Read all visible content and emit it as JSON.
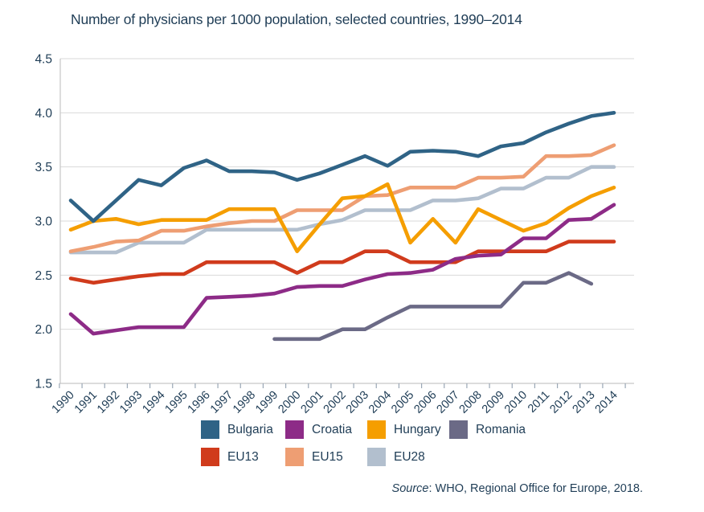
{
  "title": "Number of physicians per 1000 population, selected countries, 1990–2014",
  "source": {
    "prefix": "Source",
    "rest": ": WHO, Regional Office for Europe, 2018."
  },
  "colors": {
    "text": "#1f3d56",
    "gridline": "#d9d9d9",
    "axis": "#c6c6c6",
    "tick": "#9aa7b5",
    "background": "#ffffff"
  },
  "chart_data": {
    "type": "line",
    "title": "Number of physicians per 1000 population, selected countries, 1990–2014",
    "xlabel": "",
    "ylabel": "",
    "x": [
      1990,
      1991,
      1992,
      1993,
      1994,
      1995,
      1996,
      1997,
      1998,
      1999,
      2000,
      2001,
      2002,
      2003,
      2004,
      2005,
      2006,
      2007,
      2008,
      2009,
      2010,
      2011,
      2012,
      2013,
      2014
    ],
    "ylim": [
      1.5,
      4.5
    ],
    "ytick_step": 0.5,
    "grid": true,
    "legend_position": "bottom",
    "series": [
      {
        "name": "Bulgaria",
        "color": "#2f6386",
        "values": [
          3.19,
          3.0,
          3.19,
          3.38,
          3.33,
          3.49,
          3.56,
          3.46,
          3.46,
          3.45,
          3.38,
          3.44,
          3.52,
          3.6,
          3.51,
          3.64,
          3.65,
          3.64,
          3.6,
          3.69,
          3.72,
          3.82,
          3.9,
          3.97,
          4.0
        ]
      },
      {
        "name": "Croatia",
        "color": "#8d2b87",
        "values": [
          2.14,
          1.96,
          1.99,
          2.02,
          2.02,
          2.02,
          2.29,
          2.3,
          2.31,
          2.33,
          2.39,
          2.4,
          2.4,
          2.46,
          2.51,
          2.52,
          2.55,
          2.65,
          2.68,
          2.69,
          2.84,
          2.84,
          3.01,
          3.02,
          3.15
        ]
      },
      {
        "name": "Hungary",
        "color": "#f59e00",
        "values": [
          2.92,
          3.0,
          3.02,
          2.97,
          3.01,
          3.01,
          3.01,
          3.11,
          3.11,
          3.11,
          2.72,
          2.97,
          3.21,
          3.23,
          3.34,
          2.8,
          3.02,
          2.8,
          3.11,
          3.01,
          2.91,
          2.98,
          3.12,
          3.23,
          3.31
        ]
      },
      {
        "name": "Romania",
        "color": "#6b6a86",
        "values": [
          null,
          null,
          null,
          null,
          null,
          null,
          null,
          null,
          null,
          1.91,
          1.91,
          1.91,
          2.0,
          2.0,
          2.11,
          2.21,
          2.21,
          2.21,
          2.21,
          2.21,
          2.43,
          2.43,
          2.52,
          2.42,
          null
        ]
      },
      {
        "name": "EU13",
        "color": "#d03b1c",
        "values": [
          2.47,
          2.43,
          2.46,
          2.49,
          2.51,
          2.51,
          2.62,
          2.62,
          2.62,
          2.62,
          2.52,
          2.62,
          2.62,
          2.72,
          2.72,
          2.62,
          2.62,
          2.62,
          2.72,
          2.72,
          2.72,
          2.72,
          2.81,
          2.81,
          2.81
        ]
      },
      {
        "name": "EU15",
        "color": "#ee9e73",
        "values": [
          2.72,
          2.76,
          2.81,
          2.82,
          2.91,
          2.91,
          2.95,
          2.98,
          3.0,
          3.0,
          3.1,
          3.1,
          3.1,
          3.23,
          3.24,
          3.31,
          3.31,
          3.31,
          3.4,
          3.4,
          3.41,
          3.6,
          3.6,
          3.61,
          3.7
        ]
      },
      {
        "name": "EU28",
        "color": "#b2bfce",
        "values": [
          2.71,
          2.71,
          2.71,
          2.8,
          2.8,
          2.8,
          2.92,
          2.92,
          2.92,
          2.92,
          2.92,
          2.97,
          3.01,
          3.1,
          3.1,
          3.1,
          3.19,
          3.19,
          3.21,
          3.3,
          3.3,
          3.4,
          3.4,
          3.5,
          3.5
        ]
      }
    ],
    "draw_order": [
      "EU28",
      "EU15",
      "EU13",
      "Romania",
      "Hungary",
      "Croatia",
      "Bulgaria"
    ],
    "legend_order": [
      "Bulgaria",
      "Croatia",
      "Hungary",
      "Romania",
      "EU13",
      "EU15",
      "EU28"
    ]
  }
}
